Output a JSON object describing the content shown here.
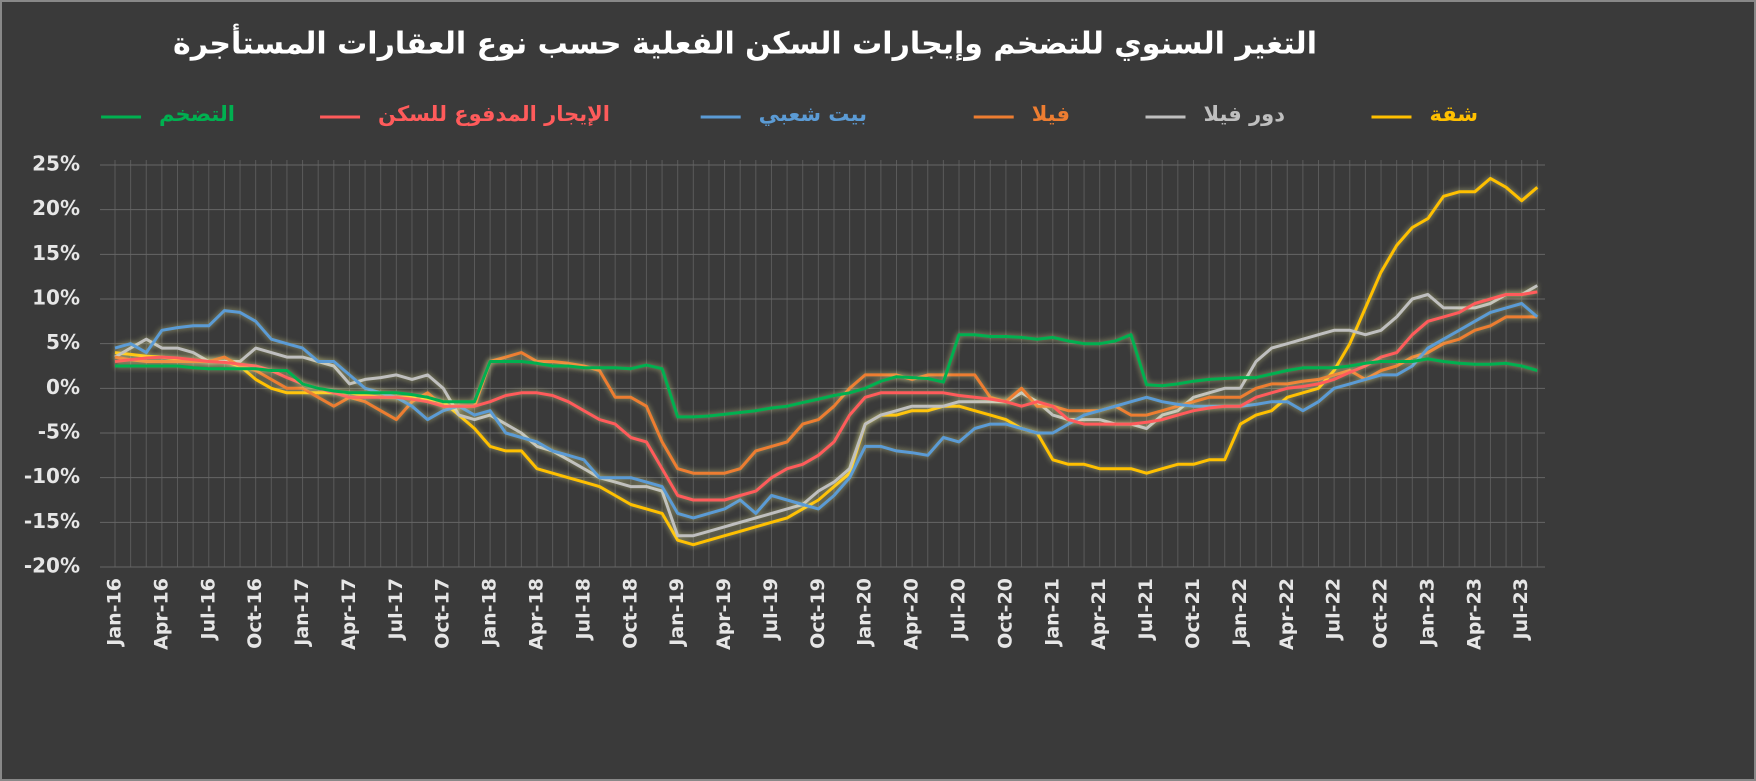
{
  "chart_data": {
    "type": "line",
    "title": "التغير السنوي للتضخم وإيجارات السكن الفعلية حسب نوع العقارات المستأجرة",
    "categories": [
      "Jan-16",
      null,
      null,
      "Apr-16",
      null,
      null,
      "Jul-16",
      null,
      null,
      "Oct-16",
      null,
      null,
      "Jan-17",
      null,
      null,
      "Apr-17",
      null,
      null,
      "Jul-17",
      null,
      null,
      "Oct-17",
      null,
      null,
      "Jan-18",
      null,
      null,
      "Apr-18",
      null,
      null,
      "Jul-18",
      null,
      null,
      "Oct-18",
      null,
      null,
      "Jan-19",
      null,
      null,
      "Apr-19",
      null,
      null,
      "Jul-19",
      null,
      null,
      "Oct-19",
      null,
      null,
      "Jan-20",
      null,
      null,
      "Apr-20",
      null,
      null,
      "Jul-20",
      null,
      null,
      "Oct-20",
      null,
      null,
      "Jan-21",
      null,
      null,
      "Apr-21",
      null,
      null,
      "Jul-21",
      null,
      null,
      "Oct-21",
      null,
      null,
      "Jan-22",
      null,
      null,
      "Apr-22",
      null,
      null,
      "Jul-22",
      null,
      null,
      "Oct-22",
      null,
      null,
      "Jan-23",
      null,
      null,
      "Apr-23",
      null,
      null,
      "Jul-23",
      null
    ],
    "ylim": [
      -20,
      25
    ],
    "yticks": [
      {
        "value": -20,
        "label": "-20%"
      },
      {
        "value": -15,
        "label": "-15%"
      },
      {
        "value": -10,
        "label": "-10%"
      },
      {
        "value": -5,
        "label": "-5%"
      },
      {
        "value": 0,
        "label": "0%"
      },
      {
        "value": 5,
        "label": "5%"
      },
      {
        "value": 10,
        "label": "10%"
      },
      {
        "value": 15,
        "label": "15%"
      },
      {
        "value": 20,
        "label": "20%"
      },
      {
        "value": 25,
        "label": "25%"
      }
    ],
    "grid": true,
    "series": [
      {
        "name": "التضخم",
        "color": "#00b050",
        "values": [
          2.5,
          2.5,
          2.5,
          2.5,
          2.5,
          2.3,
          2.2,
          2.2,
          2.2,
          2.2,
          2.0,
          2.0,
          0.5,
          0,
          -0.3,
          -0.5,
          -0.5,
          -0.5,
          -0.5,
          -0.7,
          -1,
          -1.5,
          -1.5,
          -1.5,
          3,
          3,
          3,
          2.8,
          2.5,
          2.5,
          2.3,
          2.3,
          2.3,
          2.2,
          2.6,
          2.2,
          -3.2,
          -3.2,
          -3.1,
          -2.9,
          -2.7,
          -2.5,
          -2.2,
          -2,
          -1.6,
          -1.2,
          -0.8,
          -0.5,
          0,
          0.8,
          1.3,
          1.2,
          1.1,
          0.7,
          6,
          6,
          5.8,
          5.8,
          5.7,
          5.5,
          5.7,
          5.3,
          5.0,
          5.0,
          5.3,
          6.0,
          0.4,
          0.3,
          0.5,
          0.8,
          1.0,
          1.1,
          1.2,
          1.2,
          1.6,
          2.0,
          2.3,
          2.3,
          2.3,
          2.5,
          2.8,
          3.0,
          3.0,
          3.0,
          3.3,
          3.0,
          2.8,
          2.7,
          2.7,
          2.8,
          2.5,
          2.0
        ]
      },
      {
        "name": "الإيجار المدفوع للسكن",
        "color": "#ff5b5b",
        "values": [
          3,
          3.2,
          3.4,
          3.5,
          3.4,
          3.2,
          3.0,
          2.9,
          2.7,
          2.5,
          2,
          1.2,
          0.5,
          0,
          -0.5,
          -1,
          -1,
          -1,
          -1,
          -1.2,
          -1.5,
          -2,
          -2,
          -2,
          -1.5,
          -0.8,
          -0.5,
          -0.5,
          -0.8,
          -1.5,
          -2.5,
          -3.5,
          -4,
          -5.5,
          -6,
          -9,
          -12,
          -12.5,
          -12.5,
          -12.5,
          -12,
          -11.5,
          -10,
          -9,
          -8.5,
          -7.5,
          -6,
          -3,
          -1,
          -0.5,
          -0.5,
          -0.5,
          -0.5,
          -0.5,
          -0.8,
          -1,
          -1.2,
          -1.5,
          -2,
          -1.5,
          -2,
          -3.5,
          -4,
          -4,
          -4,
          -4,
          -3.8,
          -3.5,
          -3,
          -2.5,
          -2.2,
          -2,
          -2,
          -1,
          -0.5,
          0,
          0.2,
          0.5,
          1,
          1.8,
          2.5,
          3.5,
          4,
          6,
          7.5,
          8,
          8.5,
          9.5,
          10,
          10.5,
          10.5,
          10.8
        ]
      },
      {
        "name": "بيت شعبي",
        "color": "#5b9bd5",
        "values": [
          4.5,
          5,
          4,
          6.5,
          6.8,
          7,
          7,
          8.7,
          8.5,
          7.5,
          5.5,
          5,
          4.5,
          3,
          3,
          1.5,
          0,
          -0.5,
          -1,
          -2,
          -3.5,
          -2.5,
          -2,
          -3,
          -2.5,
          -5,
          -5.5,
          -6,
          -7,
          -7.5,
          -8,
          -10,
          -10,
          -10,
          -10.5,
          -11,
          -14,
          -14.5,
          -14,
          -13.5,
          -12.5,
          -14,
          -12,
          -12.5,
          -13,
          -13.5,
          -12,
          -10,
          -6.5,
          -6.5,
          -7,
          -7.2,
          -7.5,
          -5.5,
          -6,
          -4.5,
          -4,
          -4,
          -4.5,
          -5,
          -5,
          -4,
          -3,
          -2.5,
          -2,
          -1.5,
          -1,
          -1.5,
          -1.8,
          -2,
          -2,
          -2,
          -2,
          -1.8,
          -1.5,
          -1.5,
          -2.5,
          -1.5,
          0,
          0.5,
          1,
          1.5,
          1.5,
          2.5,
          4.5,
          5.5,
          6.5,
          7.5,
          8.5,
          9,
          9.5,
          8
        ]
      },
      {
        "name": "فيلا",
        "color": "#ed7d31",
        "values": [
          3.5,
          3.2,
          3,
          3,
          3,
          3,
          3,
          3.5,
          2.5,
          2,
          1,
          0,
          0,
          -1,
          -2,
          -1,
          -1.5,
          -2.5,
          -3.5,
          -1.5,
          -0.5,
          -2,
          -2,
          -2,
          3,
          3.5,
          4,
          3,
          3,
          2.8,
          2.5,
          2,
          -1,
          -1,
          -2,
          -6,
          -9,
          -9.5,
          -9.5,
          -9.5,
          -9,
          -7,
          -6.5,
          -6,
          -4,
          -3.5,
          -2,
          0,
          1.5,
          1.5,
          1.5,
          1,
          1.5,
          1.5,
          1.5,
          1.5,
          -1,
          -1.5,
          0,
          -2,
          -2,
          -2.5,
          -2.5,
          -2.5,
          -2,
          -3,
          -3,
          -2.5,
          -2,
          -1.5,
          -1,
          -1,
          -1,
          0,
          0.5,
          0.5,
          0.8,
          1,
          1.5,
          2,
          1,
          2,
          2.5,
          3.5,
          4,
          5,
          5.5,
          6.5,
          7,
          8,
          8,
          8
        ]
      },
      {
        "name": "دور فيلا",
        "color": "#bfbfbf",
        "values": [
          3.5,
          4.5,
          5.5,
          4.5,
          4.5,
          4,
          3,
          3,
          3,
          4.5,
          4,
          3.5,
          3.5,
          3,
          2.5,
          0.5,
          1,
          1.2,
          1.5,
          1,
          1.5,
          0,
          -3,
          -3.5,
          -3,
          -4,
          -5,
          -6.5,
          -7,
          -8,
          -9,
          -10,
          -10.5,
          -11,
          -11,
          -11.5,
          -16.5,
          -16.5,
          -16,
          -15.5,
          -15,
          -14.5,
          -14,
          -13.5,
          -13,
          -11.5,
          -10.5,
          -9,
          -4,
          -3,
          -2.5,
          -2,
          -2,
          -2,
          -1.5,
          -1.5,
          -1.5,
          -1.5,
          -0.5,
          -1.5,
          -3,
          -3.5,
          -3.5,
          -3.5,
          -4,
          -4,
          -4.5,
          -3,
          -2.5,
          -1,
          -0.5,
          0,
          0,
          3,
          4.5,
          5,
          5.5,
          6,
          6.5,
          6.5,
          6,
          6.5,
          8,
          10,
          10.5,
          9,
          9,
          9,
          9.5,
          10.5,
          10.5,
          11.5
        ]
      },
      {
        "name": "شقة",
        "color": "#ffc000",
        "values": [
          4,
          3.8,
          3.6,
          3.5,
          3.3,
          3,
          3,
          3,
          2.5,
          1,
          0,
          -0.5,
          -0.5,
          -0.5,
          -0.5,
          -0.5,
          -0.8,
          -1,
          -1,
          -1,
          -1.2,
          -1.5,
          -3,
          -4.5,
          -6.5,
          -7,
          -7,
          -9,
          -9.5,
          -10,
          -10.5,
          -11,
          -12,
          -13,
          -13.5,
          -14,
          -17,
          -17.5,
          -17,
          -16.5,
          -16,
          -15.5,
          -15,
          -14.5,
          -13.5,
          -12.5,
          -11,
          -9.5,
          -4,
          -3,
          -3,
          -2.5,
          -2.5,
          -2,
          -2,
          -2.5,
          -3,
          -3.5,
          -4.5,
          -5,
          -8,
          -8.5,
          -8.5,
          -9,
          -9,
          -9,
          -9.5,
          -9,
          -8.5,
          -8.5,
          -8,
          -8,
          -4,
          -3,
          -2.5,
          -1,
          -0.5,
          0,
          2,
          5,
          9,
          13,
          16,
          18,
          19,
          21.5,
          22,
          22,
          23.5,
          22.5,
          21,
          22.5
        ]
      }
    ]
  }
}
